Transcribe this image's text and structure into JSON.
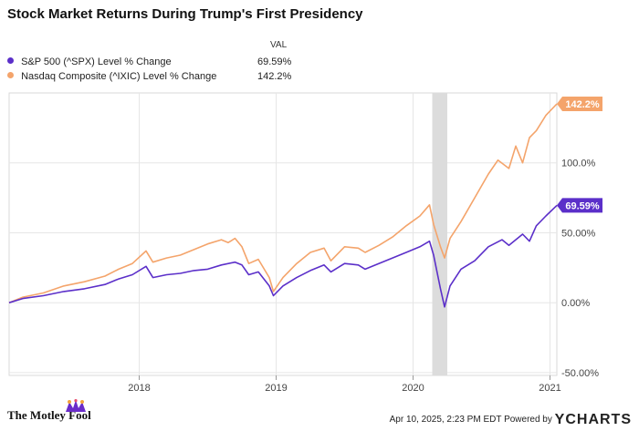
{
  "chart_data": {
    "type": "line",
    "title": "Stock Market Returns During Trump's First Presidency",
    "legend_header": "VAL",
    "x_ticks": [
      {
        "label": "2018",
        "t": 2018.0
      },
      {
        "label": "2019",
        "t": 2019.0
      },
      {
        "label": "2020",
        "t": 2020.0
      },
      {
        "label": "2021",
        "t": 2021.0
      }
    ],
    "x_range": [
      2017.05,
      2021.05
    ],
    "y_ticks": [
      {
        "label": "100.0%",
        "v": 100
      },
      {
        "label": "50.00%",
        "v": 50
      },
      {
        "label": "0.00%",
        "v": 0
      },
      {
        "label": "-50.00%",
        "v": -50
      }
    ],
    "ylim": [
      -52,
      150
    ],
    "shaded_period": [
      2020.14,
      2020.25
    ],
    "series": [
      {
        "name": "S&P 500 (^SPX) Level % Change",
        "legend_value": "69.59%",
        "end_label": "69.59%",
        "color": "#5b2fc9",
        "points": [
          [
            2017.05,
            0
          ],
          [
            2017.15,
            3
          ],
          [
            2017.3,
            5
          ],
          [
            2017.45,
            8
          ],
          [
            2017.6,
            10
          ],
          [
            2017.75,
            13
          ],
          [
            2017.85,
            17
          ],
          [
            2017.95,
            20
          ],
          [
            2018.05,
            26
          ],
          [
            2018.1,
            18
          ],
          [
            2018.2,
            20
          ],
          [
            2018.3,
            21
          ],
          [
            2018.4,
            23
          ],
          [
            2018.5,
            24
          ],
          [
            2018.6,
            27
          ],
          [
            2018.7,
            29
          ],
          [
            2018.75,
            27
          ],
          [
            2018.8,
            20
          ],
          [
            2018.87,
            22
          ],
          [
            2018.95,
            12
          ],
          [
            2018.98,
            5
          ],
          [
            2019.05,
            12
          ],
          [
            2019.15,
            18
          ],
          [
            2019.25,
            23
          ],
          [
            2019.35,
            27
          ],
          [
            2019.4,
            22
          ],
          [
            2019.5,
            28
          ],
          [
            2019.6,
            27
          ],
          [
            2019.65,
            24
          ],
          [
            2019.75,
            28
          ],
          [
            2019.85,
            32
          ],
          [
            2019.95,
            36
          ],
          [
            2020.05,
            40
          ],
          [
            2020.12,
            44
          ],
          [
            2020.15,
            34
          ],
          [
            2020.2,
            10
          ],
          [
            2020.23,
            -3
          ],
          [
            2020.27,
            12
          ],
          [
            2020.35,
            24
          ],
          [
            2020.45,
            30
          ],
          [
            2020.55,
            40
          ],
          [
            2020.65,
            45
          ],
          [
            2020.7,
            41
          ],
          [
            2020.8,
            49
          ],
          [
            2020.85,
            44
          ],
          [
            2020.9,
            55
          ],
          [
            2020.97,
            62
          ],
          [
            2021.05,
            69.59
          ]
        ]
      },
      {
        "name": "Nasdaq Composite (^IXIC) Level % Change",
        "legend_value": "142.2%",
        "end_label": "142.2%",
        "color": "#f4a46b",
        "points": [
          [
            2017.05,
            0
          ],
          [
            2017.15,
            4
          ],
          [
            2017.3,
            7
          ],
          [
            2017.45,
            12
          ],
          [
            2017.6,
            15
          ],
          [
            2017.75,
            19
          ],
          [
            2017.85,
            24
          ],
          [
            2017.95,
            28
          ],
          [
            2018.05,
            37
          ],
          [
            2018.1,
            29
          ],
          [
            2018.2,
            32
          ],
          [
            2018.3,
            34
          ],
          [
            2018.4,
            38
          ],
          [
            2018.5,
            42
          ],
          [
            2018.6,
            45
          ],
          [
            2018.65,
            43
          ],
          [
            2018.7,
            46
          ],
          [
            2018.75,
            40
          ],
          [
            2018.8,
            28
          ],
          [
            2018.87,
            31
          ],
          [
            2018.95,
            18
          ],
          [
            2018.98,
            8
          ],
          [
            2019.05,
            18
          ],
          [
            2019.15,
            28
          ],
          [
            2019.25,
            36
          ],
          [
            2019.35,
            39
          ],
          [
            2019.4,
            30
          ],
          [
            2019.5,
            40
          ],
          [
            2019.6,
            39
          ],
          [
            2019.65,
            36
          ],
          [
            2019.75,
            41
          ],
          [
            2019.85,
            47
          ],
          [
            2019.95,
            55
          ],
          [
            2020.05,
            62
          ],
          [
            2020.12,
            70
          ],
          [
            2020.15,
            56
          ],
          [
            2020.2,
            40
          ],
          [
            2020.23,
            32
          ],
          [
            2020.27,
            46
          ],
          [
            2020.35,
            58
          ],
          [
            2020.45,
            75
          ],
          [
            2020.55,
            92
          ],
          [
            2020.62,
            102
          ],
          [
            2020.7,
            96
          ],
          [
            2020.75,
            112
          ],
          [
            2020.8,
            100
          ],
          [
            2020.85,
            118
          ],
          [
            2020.9,
            123
          ],
          [
            2020.97,
            134
          ],
          [
            2021.05,
            142.2
          ]
        ]
      }
    ]
  },
  "footer": {
    "brand": "The Motley Fool",
    "timestamp": "Apr 10, 2025, 2:23 PM EDT",
    "powered_by": "Powered by",
    "provider": "YCHARTS"
  }
}
